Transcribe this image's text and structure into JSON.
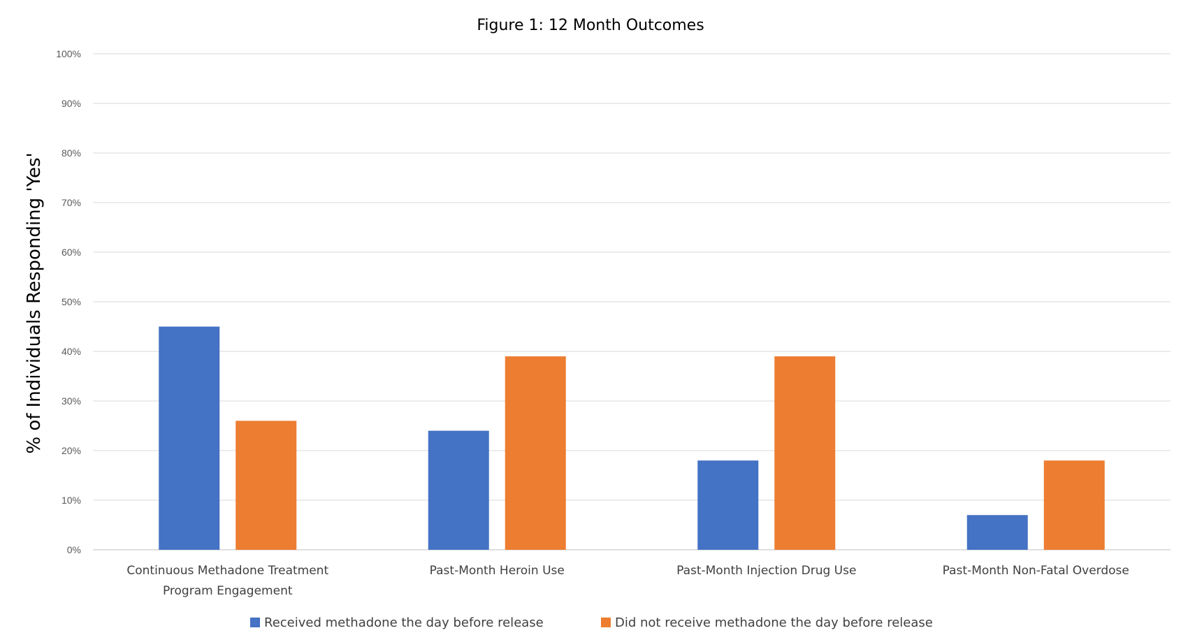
{
  "chart_data": {
    "type": "bar",
    "title": "Figure 1: 12 Month Outcomes",
    "xlabel": "",
    "ylabel": "% of Individuals Responding 'Yes'",
    "ylim": [
      0,
      100
    ],
    "yticks": [
      "0%",
      "10%",
      "20%",
      "30%",
      "40%",
      "50%",
      "60%",
      "70%",
      "80%",
      "90%",
      "100%"
    ],
    "categories": [
      [
        "Continuous Methadone Treatment",
        "Program Engagement"
      ],
      [
        "Past-Month Heroin Use"
      ],
      [
        "Past-Month Injection Drug Use"
      ],
      [
        "Past-Month Non-Fatal Overdose"
      ]
    ],
    "series": [
      {
        "name": "Received methadone the day before release",
        "color": "#4472c4",
        "values": [
          45,
          24,
          18,
          7
        ]
      },
      {
        "name": "Did not receive methadone the day before release",
        "color": "#ed7d31",
        "values": [
          26,
          39,
          39,
          18
        ]
      }
    ],
    "grid": true,
    "legend_position": "bottom"
  }
}
